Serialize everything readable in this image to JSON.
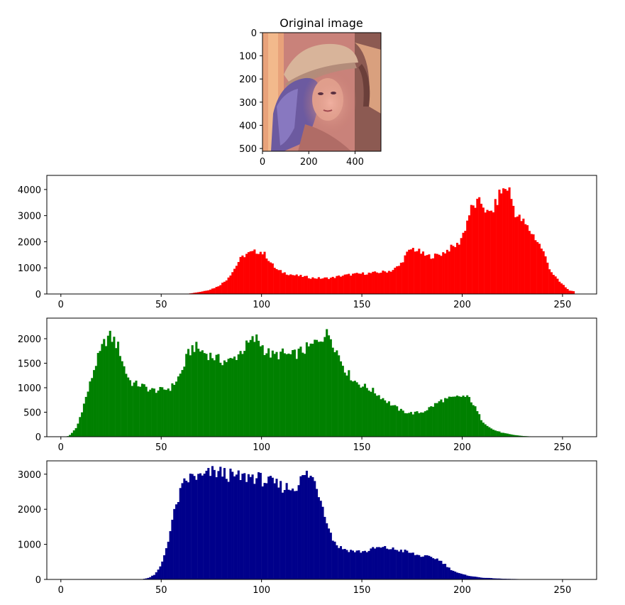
{
  "image_panel": {
    "title": "Original image",
    "x_ticks": [
      "0",
      "200",
      "400"
    ],
    "y_ticks": [
      "0",
      "100",
      "200",
      "300",
      "400",
      "500"
    ],
    "x_tick_values": [
      0,
      200,
      400
    ],
    "y_tick_values": [
      0,
      100,
      200,
      300,
      400,
      500
    ],
    "extent": [
      0,
      512
    ]
  },
  "chart_data": [
    {
      "type": "bar",
      "title": "",
      "xlabel": "",
      "ylabel": "",
      "color": "#ff0000",
      "xlim": [
        -7,
        267
      ],
      "ylim": [
        0,
        4540
      ],
      "x_ticks": [
        0,
        50,
        100,
        150,
        200,
        250
      ],
      "y_ticks": [
        0,
        1000,
        2000,
        3000,
        4000
      ],
      "anchors": [
        [
          0,
          0
        ],
        [
          62,
          0
        ],
        [
          66,
          40
        ],
        [
          70,
          90
        ],
        [
          74,
          160
        ],
        [
          78,
          280
        ],
        [
          82,
          500
        ],
        [
          86,
          900
        ],
        [
          89,
          1300
        ],
        [
          92,
          1520
        ],
        [
          96,
          1600
        ],
        [
          99,
          1640
        ],
        [
          102,
          1500
        ],
        [
          105,
          1150
        ],
        [
          108,
          900
        ],
        [
          112,
          800
        ],
        [
          116,
          720
        ],
        [
          120,
          680
        ],
        [
          125,
          620
        ],
        [
          130,
          600
        ],
        [
          135,
          620
        ],
        [
          140,
          700
        ],
        [
          145,
          750
        ],
        [
          150,
          780
        ],
        [
          155,
          800
        ],
        [
          160,
          840
        ],
        [
          165,
          900
        ],
        [
          169,
          1100
        ],
        [
          172,
          1500
        ],
        [
          175,
          1750
        ],
        [
          178,
          1650
        ],
        [
          182,
          1450
        ],
        [
          186,
          1450
        ],
        [
          190,
          1550
        ],
        [
          194,
          1750
        ],
        [
          198,
          1900
        ],
        [
          201,
          2400
        ],
        [
          204,
          3200
        ],
        [
          207,
          3450
        ],
        [
          210,
          3500
        ],
        [
          213,
          3000
        ],
        [
          216,
          3300
        ],
        [
          219,
          3900
        ],
        [
          221,
          4000
        ],
        [
          223,
          4100
        ],
        [
          225,
          3500
        ],
        [
          227,
          3000
        ],
        [
          230,
          2800
        ],
        [
          233,
          2500
        ],
        [
          236,
          2200
        ],
        [
          240,
          1700
        ],
        [
          244,
          900
        ],
        [
          248,
          500
        ],
        [
          251,
          300
        ],
        [
          253,
          150
        ],
        [
          255,
          100
        ]
      ]
    },
    {
      "type": "bar",
      "title": "",
      "xlabel": "",
      "ylabel": "",
      "color": "#008000",
      "xlim": [
        -7,
        267
      ],
      "ylim": [
        0,
        2420
      ],
      "x_ticks": [
        0,
        50,
        100,
        150,
        200,
        250
      ],
      "y_ticks": [
        0,
        500,
        1000,
        1500,
        2000
      ],
      "anchors": [
        [
          0,
          0
        ],
        [
          3,
          0
        ],
        [
          5,
          50
        ],
        [
          8,
          200
        ],
        [
          11,
          600
        ],
        [
          14,
          1000
        ],
        [
          17,
          1450
        ],
        [
          20,
          1750
        ],
        [
          22,
          1950
        ],
        [
          24,
          2050
        ],
        [
          26,
          2000
        ],
        [
          29,
          1800
        ],
        [
          32,
          1350
        ],
        [
          35,
          1100
        ],
        [
          40,
          1050
        ],
        [
          45,
          950
        ],
        [
          50,
          950
        ],
        [
          55,
          1000
        ],
        [
          60,
          1300
        ],
        [
          63,
          1650
        ],
        [
          66,
          1850
        ],
        [
          70,
          1750
        ],
        [
          75,
          1650
        ],
        [
          80,
          1550
        ],
        [
          85,
          1550
        ],
        [
          90,
          1750
        ],
        [
          95,
          1950
        ],
        [
          98,
          2000
        ],
        [
          102,
          1750
        ],
        [
          106,
          1650
        ],
        [
          110,
          1700
        ],
        [
          115,
          1650
        ],
        [
          120,
          1750
        ],
        [
          125,
          1850
        ],
        [
          130,
          2050
        ],
        [
          134,
          2100
        ],
        [
          138,
          1700
        ],
        [
          142,
          1350
        ],
        [
          146,
          1150
        ],
        [
          150,
          1050
        ],
        [
          155,
          950
        ],
        [
          160,
          800
        ],
        [
          165,
          650
        ],
        [
          170,
          520
        ],
        [
          175,
          480
        ],
        [
          180,
          500
        ],
        [
          185,
          620
        ],
        [
          190,
          750
        ],
        [
          195,
          780
        ],
        [
          200,
          830
        ],
        [
          204,
          780
        ],
        [
          207,
          550
        ],
        [
          210,
          320
        ],
        [
          215,
          150
        ],
        [
          220,
          80
        ],
        [
          225,
          40
        ],
        [
          230,
          15
        ],
        [
          235,
          5
        ],
        [
          255,
          0
        ]
      ]
    },
    {
      "type": "bar",
      "title": "",
      "xlabel": "",
      "ylabel": "",
      "color": "#00008b",
      "xlim": [
        -7,
        267
      ],
      "ylim": [
        0,
        3380
      ],
      "x_ticks": [
        0,
        50,
        100,
        150,
        200,
        250
      ],
      "y_ticks": [
        0,
        1000,
        2000,
        3000
      ],
      "anchors": [
        [
          0,
          0
        ],
        [
          40,
          0
        ],
        [
          44,
          50
        ],
        [
          47,
          150
        ],
        [
          50,
          400
        ],
        [
          53,
          1000
        ],
        [
          56,
          1800
        ],
        [
          59,
          2400
        ],
        [
          62,
          2800
        ],
        [
          66,
          2950
        ],
        [
          70,
          2900
        ],
        [
          75,
          3050
        ],
        [
          80,
          3050
        ],
        [
          85,
          2950
        ],
        [
          90,
          2900
        ],
        [
          95,
          2950
        ],
        [
          100,
          2850
        ],
        [
          105,
          2750
        ],
        [
          110,
          2650
        ],
        [
          115,
          2600
        ],
        [
          118,
          2700
        ],
        [
          121,
          2950
        ],
        [
          123,
          3000
        ],
        [
          126,
          2850
        ],
        [
          129,
          2400
        ],
        [
          132,
          1800
        ],
        [
          135,
          1200
        ],
        [
          138,
          950
        ],
        [
          142,
          850
        ],
        [
          147,
          800
        ],
        [
          152,
          800
        ],
        [
          157,
          900
        ],
        [
          162,
          900
        ],
        [
          167,
          850
        ],
        [
          172,
          800
        ],
        [
          177,
          700
        ],
        [
          182,
          650
        ],
        [
          187,
          600
        ],
        [
          190,
          500
        ],
        [
          194,
          300
        ],
        [
          198,
          180
        ],
        [
          202,
          120
        ],
        [
          206,
          80
        ],
        [
          210,
          50
        ],
        [
          220,
          20
        ],
        [
          230,
          8
        ],
        [
          255,
          0
        ]
      ]
    }
  ]
}
